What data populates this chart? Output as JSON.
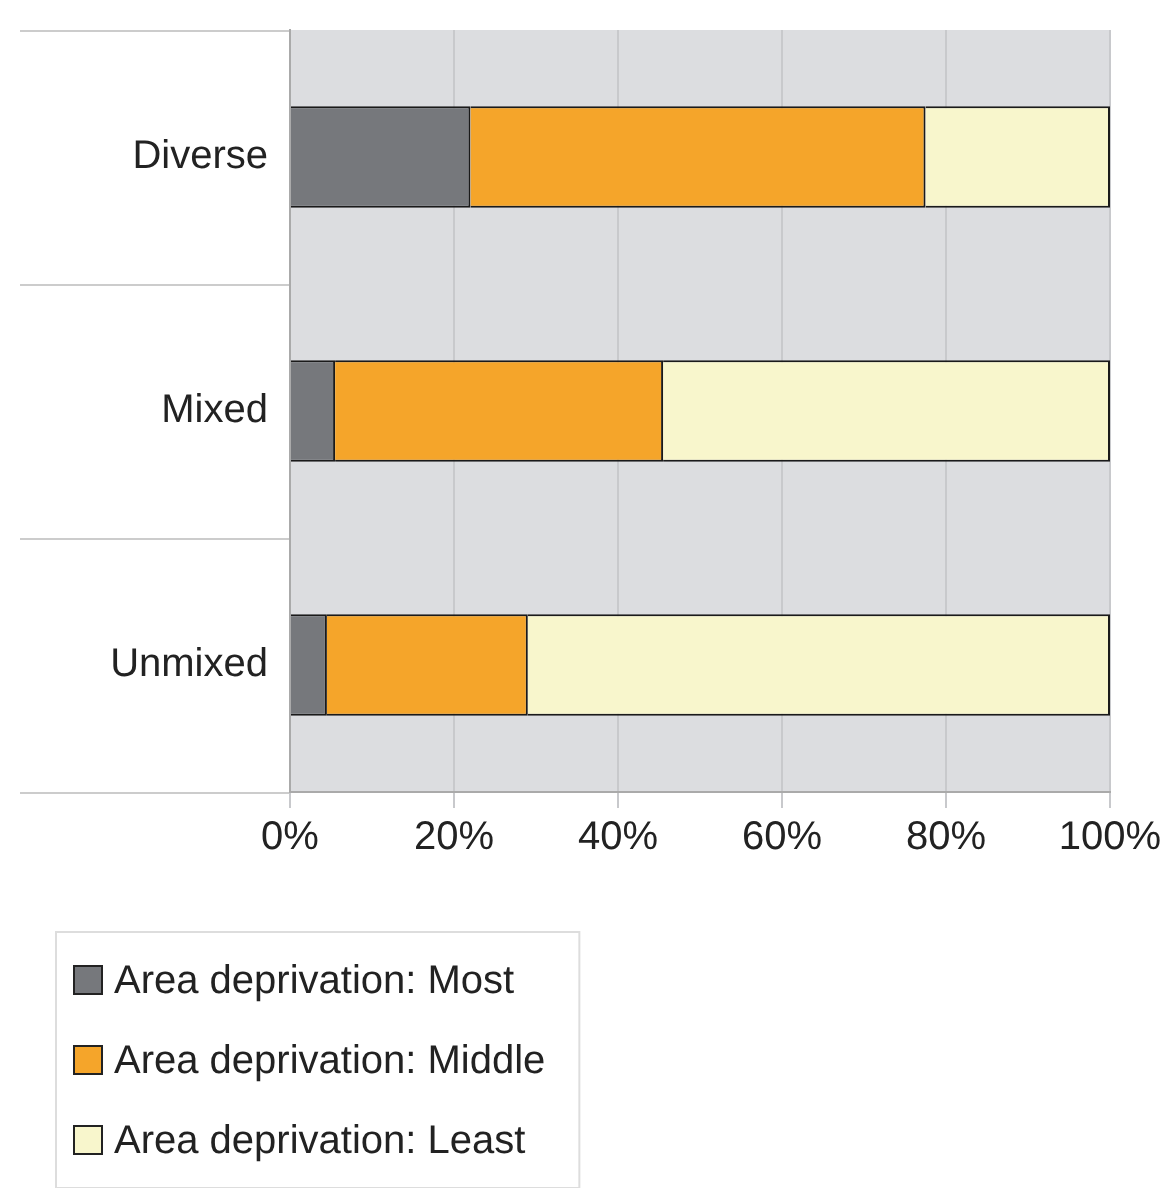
{
  "chart_data": {
    "type": "bar",
    "orientation": "horizontal",
    "stacked": true,
    "categories": [
      "Diverse",
      "Mixed",
      "Unmixed"
    ],
    "series": [
      {
        "name": "Area deprivation: Most",
        "color": "#76787c",
        "values": [
          22,
          5.5,
          4.5
        ]
      },
      {
        "name": "Area deprivation: Middle",
        "color": "#f5a52a",
        "values": [
          55.5,
          40,
          24.5
        ]
      },
      {
        "name": "Area deprivation: Least",
        "color": "#f8f6cc",
        "values": [
          22.5,
          54.5,
          71
        ]
      }
    ],
    "xlim": [
      0,
      100
    ],
    "xticks": [
      {
        "value": 0,
        "label": "0%"
      },
      {
        "value": 20,
        "label": "20%"
      },
      {
        "value": 40,
        "label": "40%"
      },
      {
        "value": 60,
        "label": "60%"
      },
      {
        "value": 80,
        "label": "80%"
      },
      {
        "value": 100,
        "label": "100%"
      }
    ],
    "grid": "x",
    "legend": "bottom left"
  }
}
